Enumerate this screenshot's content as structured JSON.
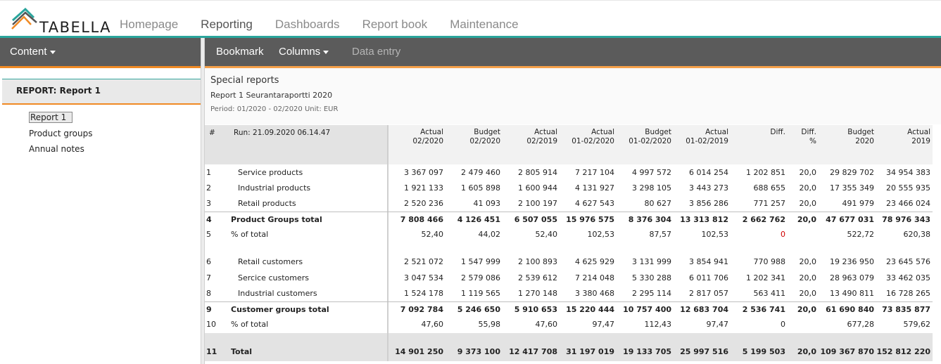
{
  "app": {
    "logo_text": "TABELLA"
  },
  "nav": [
    "Homepage",
    "Reporting",
    "Dashboards",
    "Report book",
    "Maintenance"
  ],
  "sidebar": {
    "menu_label": "Content",
    "report_title": "REPORT: Report 1",
    "items": [
      "Report 1",
      "Product groups",
      "Annual notes"
    ]
  },
  "toolbar": {
    "bookmark": "Bookmark",
    "columns": "Columns",
    "data_entry": "Data entry"
  },
  "report": {
    "heading": "Special reports",
    "name": "Report 1 Seurantaraportti 2020",
    "period": "Period: 01/2020 - 02/2020 Unit: EUR"
  },
  "table": {
    "hash": "#",
    "run": "Run: 21.09.2020 06.14.47",
    "columns": [
      [
        "Actual",
        "02/2020"
      ],
      [
        "Budget",
        "02/2020"
      ],
      [
        "Actual",
        "02/2019"
      ],
      [
        "Actual",
        "01-02/2020"
      ],
      [
        "Budget",
        "01-02/2020"
      ],
      [
        "Actual",
        "01-02/2019"
      ],
      [
        "",
        "Diff."
      ],
      [
        "Diff.",
        "%"
      ],
      [
        "Budget",
        "2020"
      ],
      [
        "Actual",
        "2019"
      ]
    ],
    "rows": [
      {
        "n": "1",
        "label": "Service products",
        "indent": true,
        "bold": false,
        "v": [
          "3 367 097",
          "2 479 460",
          "2 805 914",
          "7 217 104",
          "4 997 572",
          "6 014 254",
          "1 202 851",
          "20,0",
          "29 829 702",
          "34 954 383"
        ]
      },
      {
        "n": "2",
        "label": "Industrial products",
        "indent": true,
        "bold": false,
        "v": [
          "1 921 133",
          "1 605 898",
          "1 600 944",
          "4 131 927",
          "3 298 105",
          "3 443 273",
          "688 655",
          "20,0",
          "17 355 349",
          "20 555 935"
        ]
      },
      {
        "n": "3",
        "label": "Retail products",
        "indent": true,
        "bold": false,
        "v": [
          "2 520 236",
          "41 093",
          "2 100 197",
          "4 627 543",
          "80 627",
          "3 856 286",
          "771 257",
          "20,0",
          "491 979",
          "23 466 024"
        ]
      },
      {
        "n": "4",
        "label": "Product Groups total",
        "indent": false,
        "bold": true,
        "v": [
          "7 808 466",
          "4 126 451",
          "6 507 055",
          "15 976 575",
          "8 376 304",
          "13 313 812",
          "2 662 762",
          "20,0",
          "47 677 031",
          "78 976 343"
        ]
      },
      {
        "n": "5",
        "label": "% of total",
        "indent": false,
        "bold": false,
        "v": [
          "52,40",
          "44,02",
          "52,40",
          "102,53",
          "87,57",
          "102,53",
          "0",
          "",
          "522,72",
          "620,38"
        ]
      },
      {
        "n": "6",
        "label": "Retail customers",
        "indent": true,
        "bold": false,
        "v": [
          "2 521 072",
          "1 547 999",
          "2 100 893",
          "4 625 929",
          "3 131 999",
          "3 854 941",
          "770 988",
          "20,0",
          "19 236 950",
          "23 645 576"
        ]
      },
      {
        "n": "7",
        "label": "Sercice customers",
        "indent": true,
        "bold": false,
        "v": [
          "3 047 534",
          "2 579 086",
          "2 539 612",
          "7 214 048",
          "5 330 288",
          "6 011 706",
          "1 202 341",
          "20,0",
          "28 963 079",
          "33 462 035"
        ]
      },
      {
        "n": "8",
        "label": "Industrial customers",
        "indent": true,
        "bold": false,
        "v": [
          "1 524 178",
          "1 119 565",
          "1 270 148",
          "3 380 468",
          "2 295 114",
          "2 817 057",
          "563 411",
          "20,0",
          "13 490 811",
          "16 728 265"
        ]
      },
      {
        "n": "9",
        "label": "Customer groups total",
        "indent": false,
        "bold": true,
        "v": [
          "7 092 784",
          "5 246 650",
          "5 910 653",
          "15 220 444",
          "10 757 400",
          "12 683 704",
          "2 536 741",
          "20,0",
          "61 690 840",
          "73 835 877"
        ]
      },
      {
        "n": "10",
        "label": "% of total",
        "indent": false,
        "bold": false,
        "v": [
          "47,60",
          "55,98",
          "47,60",
          "97,47",
          "112,43",
          "97,47",
          "0",
          "",
          "677,28",
          "579,62"
        ]
      },
      {
        "n": "11",
        "label": "Total",
        "indent": false,
        "bold": true,
        "v": [
          "14 901 250",
          "9 373 100",
          "12 417 708",
          "31 197 019",
          "19 133 705",
          "25 997 516",
          "5 199 503",
          "20,0",
          "109 367 870",
          "152 812 220"
        ]
      }
    ],
    "highlight_color": "#d00000"
  }
}
